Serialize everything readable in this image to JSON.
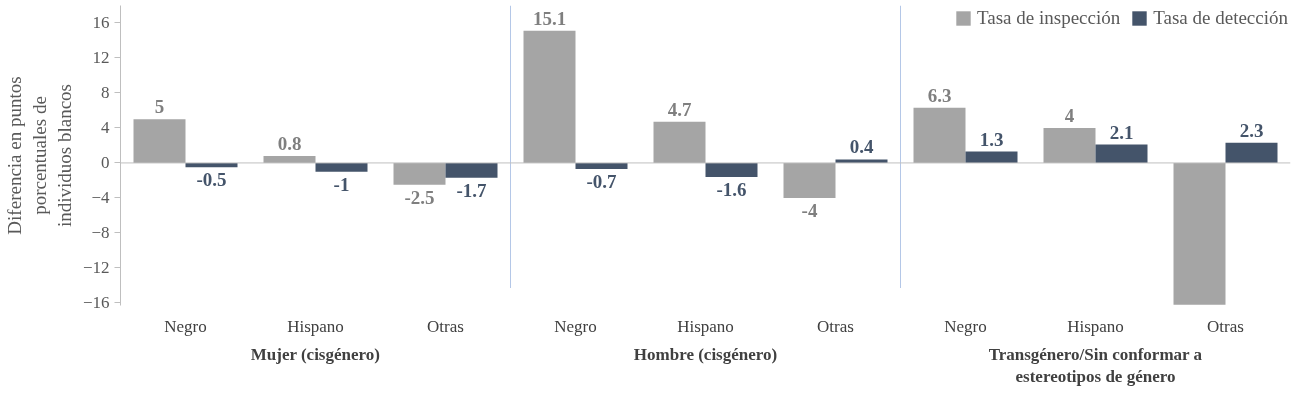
{
  "chart_data": {
    "type": "bar",
    "ylabel": "Diferencia en puntos porcentuales de individuos blancos",
    "categories": [
      "Negro",
      "Hispano",
      "Otras",
      "Negro",
      "Hispano",
      "Otras",
      "Negro",
      "Hispano",
      "Otras"
    ],
    "annotations": [
      "Mujer (cisgénero)",
      "Hombre (cisgénero)",
      "Transgénero/Sin conformar a estereotipos de género"
    ],
    "series": [
      {
        "name": "Tasa de inspección",
        "color": "#a5a5a5",
        "values": [
          5,
          0.8,
          -2.5,
          15.1,
          4.7,
          -4,
          6.3,
          4,
          -16.2
        ],
        "value_labels": [
          "5",
          "0.8",
          "-2.5",
          "15.1",
          "4.7",
          "-4",
          "6.3",
          "4",
          null
        ]
      },
      {
        "name": "Tasa de detección",
        "color": "#44546a",
        "values": [
          -0.5,
          -1,
          -1.7,
          -0.7,
          -1.6,
          0.4,
          1.3,
          2.1,
          2.3
        ],
        "value_labels": [
          "-0.5",
          "-1",
          "-1.7",
          "-0.7",
          "-1.6",
          "0.4",
          "1.3",
          "2.1",
          "2.3"
        ]
      }
    ],
    "ylim": [
      -16.3,
      18
    ],
    "yticks": [
      -16,
      -12,
      -8,
      -4,
      0,
      4,
      8,
      12,
      16
    ],
    "grid": false,
    "legend": "top right"
  }
}
